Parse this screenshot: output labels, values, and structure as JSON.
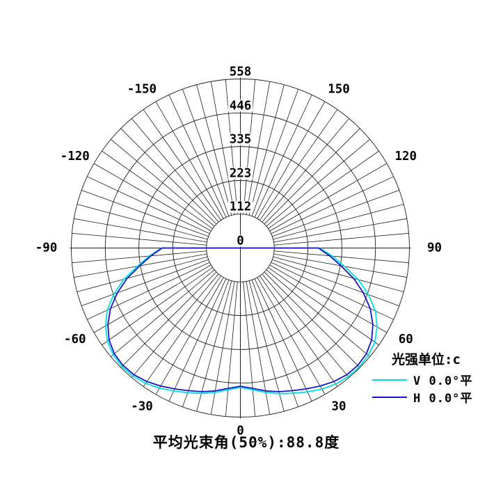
{
  "chart_data": {
    "type": "polar_line",
    "title": "",
    "caption": "平均光束角(50%):88.8度",
    "r_axis": {
      "ticks": [
        0,
        112,
        223,
        335,
        446,
        558
      ],
      "max": 558,
      "tick_labels": [
        "0",
        "112",
        "223",
        "335",
        "446",
        "558"
      ]
    },
    "angle_axis": {
      "labels_deg": [
        -150,
        -120,
        -90,
        -60,
        -30,
        0,
        30,
        60,
        90,
        120,
        150
      ],
      "zero_position": "bottom",
      "spoke_step_deg": 5,
      "inner_hole_value": 112
    },
    "grid": {
      "line_color": "#1c1c1c",
      "on": true
    },
    "legend": {
      "title": "光强单位:c",
      "position": "bottom-right",
      "items": [
        {
          "label": "V 0.0°平",
          "color": "#00E0E0"
        },
        {
          "label": "H 0.0°平",
          "color": "#1414CC"
        }
      ]
    },
    "series": [
      {
        "name": "V 0.0°平",
        "color": "#00E0E0",
        "points_deg_cd": [
          [
            -95,
            0
          ],
          [
            -90,
            260
          ],
          [
            -85,
            302
          ],
          [
            -80,
            345
          ],
          [
            -75,
            398
          ],
          [
            -70,
            444
          ],
          [
            -65,
            485
          ],
          [
            -60,
            514
          ],
          [
            -55,
            536
          ],
          [
            -50,
            548
          ],
          [
            -45,
            553
          ],
          [
            -40,
            552
          ],
          [
            -35,
            545
          ],
          [
            -30,
            534
          ],
          [
            -25,
            521
          ],
          [
            -20,
            508
          ],
          [
            -15,
            497
          ],
          [
            -10,
            484
          ],
          [
            -5,
            470
          ],
          [
            0,
            460
          ],
          [
            5,
            470
          ],
          [
            10,
            484
          ],
          [
            15,
            498
          ],
          [
            20,
            510
          ],
          [
            25,
            524
          ],
          [
            30,
            538
          ],
          [
            35,
            548
          ],
          [
            40,
            554
          ],
          [
            45,
            555
          ],
          [
            50,
            551
          ],
          [
            55,
            542
          ],
          [
            60,
            521
          ],
          [
            65,
            492
          ],
          [
            70,
            450
          ],
          [
            75,
            403
          ],
          [
            80,
            349
          ],
          [
            85,
            305
          ],
          [
            90,
            261
          ],
          [
            95,
            0
          ]
        ]
      },
      {
        "name": "H 0.0°平",
        "color": "#1414CC",
        "points_deg_cd": [
          [
            -95,
            0
          ],
          [
            -90,
            258
          ],
          [
            -85,
            296
          ],
          [
            -80,
            337
          ],
          [
            -75,
            387
          ],
          [
            -70,
            432
          ],
          [
            -65,
            473
          ],
          [
            -60,
            505
          ],
          [
            -55,
            529
          ],
          [
            -50,
            543
          ],
          [
            -45,
            548
          ],
          [
            -40,
            546
          ],
          [
            -35,
            538
          ],
          [
            -30,
            526
          ],
          [
            -25,
            513
          ],
          [
            -20,
            501
          ],
          [
            -15,
            491
          ],
          [
            -10,
            479
          ],
          [
            -5,
            465
          ],
          [
            0,
            456
          ],
          [
            5,
            465
          ],
          [
            10,
            479
          ],
          [
            15,
            491
          ],
          [
            20,
            501
          ],
          [
            25,
            513
          ],
          [
            30,
            526
          ],
          [
            35,
            538
          ],
          [
            40,
            546
          ],
          [
            45,
            548
          ],
          [
            50,
            543
          ],
          [
            55,
            529
          ],
          [
            60,
            505
          ],
          [
            65,
            473
          ],
          [
            70,
            432
          ],
          [
            75,
            387
          ],
          [
            80,
            337
          ],
          [
            85,
            296
          ],
          [
            90,
            258
          ],
          [
            95,
            0
          ]
        ]
      }
    ]
  }
}
